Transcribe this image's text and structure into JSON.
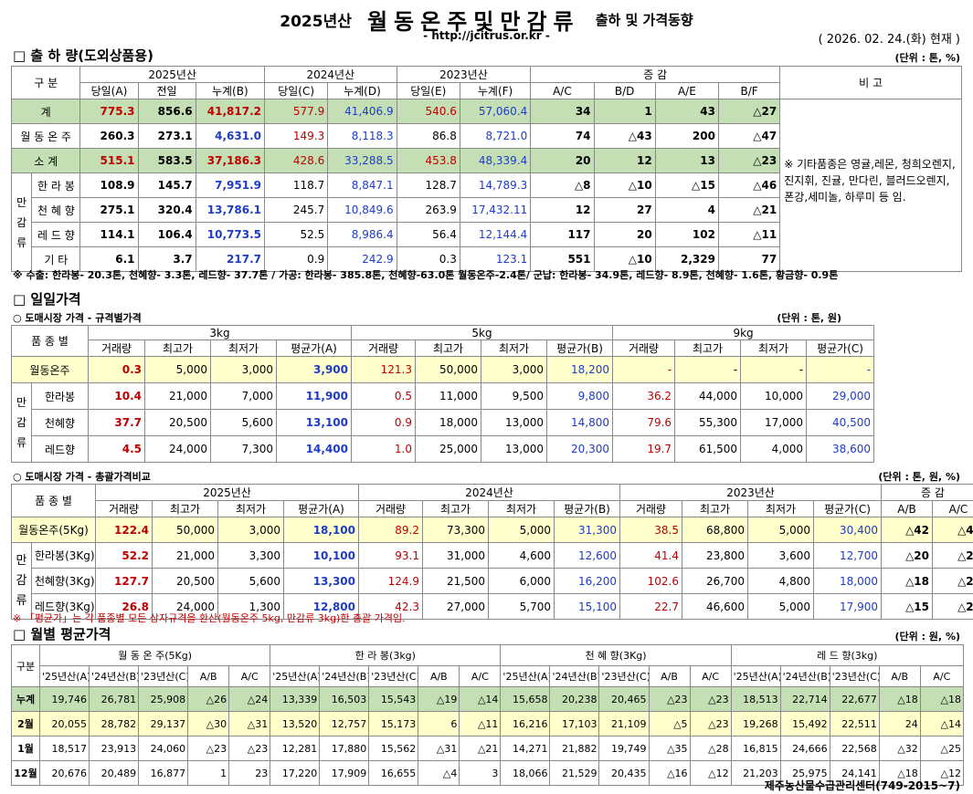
{
  "header": {
    "year": "2025년산",
    "product": "월동온주및만감류",
    "subtitle": "출하 및 가격동향",
    "url": "- http://jcitrus.or.kr -",
    "date": "( 2026. 02. 24.(화) 현재 )"
  },
  "shipment": {
    "title": "□ 출 하 량(도외상품용)",
    "unit": "(단위 : 톤, %)",
    "h": {
      "gubun": "구 분",
      "y2025": "2025년산",
      "y2024": "2024년산",
      "y2023": "2023년산",
      "change": "증 감",
      "remark": "비 고",
      "A": "당일(A)",
      "prev": "전일",
      "B": "누계(B)",
      "C": "당일(C)",
      "D": "누계(D)",
      "E": "당일(E)",
      "F": "누계(F)",
      "AC": "A/C",
      "BD": "B/D",
      "AE": "A/E",
      "BF": "B/F",
      "mangam": "만 감 류"
    },
    "rows": [
      {
        "name": "계",
        "v": [
          "775.3",
          "856.6",
          "41,817.2",
          "577.9",
          "41,406.9",
          "540.6",
          "57,060.4",
          "34",
          "1",
          "43",
          "△27"
        ]
      },
      {
        "name": "월 동 온 주",
        "v": [
          "260.3",
          "273.1",
          "4,631.0",
          "149.3",
          "8,118.3",
          "86.8",
          "8,721.0",
          "74",
          "△43",
          "200",
          "△47"
        ]
      },
      {
        "name": "소 계",
        "v": [
          "515.1",
          "583.5",
          "37,186.3",
          "428.6",
          "33,288.5",
          "453.8",
          "48,339.4",
          "20",
          "12",
          "13",
          "△23"
        ]
      },
      {
        "name": "한 라 봉",
        "v": [
          "108.9",
          "145.7",
          "7,951.9",
          "118.7",
          "8,847.1",
          "128.7",
          "14,789.3",
          "△8",
          "△10",
          "△15",
          "△46"
        ]
      },
      {
        "name": "천 혜 향",
        "v": [
          "275.1",
          "320.4",
          "13,786.1",
          "245.7",
          "10,849.6",
          "263.9",
          "17,432.11",
          "12",
          "27",
          "4",
          "△21"
        ]
      },
      {
        "name": "레 드 향",
        "v": [
          "114.1",
          "106.4",
          "10,773.5",
          "52.5",
          "8,986.4",
          "56.4",
          "12,144.4",
          "117",
          "20",
          "102",
          "△11"
        ]
      },
      {
        "name": "기 타",
        "v": [
          "6.1",
          "3.7",
          "217.7",
          "0.9",
          "242.9",
          "0.3",
          "123.1",
          "551",
          "△10",
          "2,329",
          "77"
        ]
      }
    ],
    "remark_text": "※ 기타품종은 영귤,레몬, 청희오렌지, 진지휘, 진귤, 만다린, 블러드오렌지, 폰강,세미놀, 하루미 등 임.",
    "note": "※ 수출: 한라봉- 20.3톤, 천혜향- 3.3톤, 레드향- 37.7톤 / 가공: 한라봉- 385.8톤, 천혜향-63.0톤 월동온주-2.4톤/  군납: 한라봉- 34.9톤, 레드향- 8.9톤, 천혜향- 1.6톤, 황금향- 0.9톤"
  },
  "daily": {
    "title": "□ 일일가격",
    "sub1": "○ 도매시장 가격 - 규격별가격",
    "unit1": "(단위 : 톤, 원)",
    "h1": {
      "variety": "품 종 별",
      "kg3": "3kg",
      "kg5": "5kg",
      "kg9": "9kg",
      "vol": "거래량",
      "max": "최고가",
      "min": "최저가",
      "avgA": "평균가(A)",
      "avgB": "평균가(B)",
      "avgC": "평균가(C)",
      "mangam": "만 감 류"
    },
    "rows1": [
      {
        "name": "월동온주",
        "v": [
          "0.3",
          "5,000",
          "3,000",
          "3,900",
          "121.3",
          "50,000",
          "3,000",
          "18,200",
          "-",
          "-",
          "-",
          "-"
        ]
      },
      {
        "name": "한라봉",
        "v": [
          "10.4",
          "21,000",
          "7,000",
          "11,900",
          "0.5",
          "11,000",
          "9,500",
          "9,800",
          "36.2",
          "44,000",
          "10,000",
          "29,000"
        ]
      },
      {
        "name": "천혜향",
        "v": [
          "37.7",
          "20,500",
          "5,600",
          "13,100",
          "0.9",
          "18,000",
          "13,000",
          "14,800",
          "79.6",
          "55,300",
          "17,000",
          "40,500"
        ]
      },
      {
        "name": "레드향",
        "v": [
          "4.5",
          "24,000",
          "7,300",
          "14,400",
          "1.0",
          "25,000",
          "13,000",
          "20,300",
          "19.7",
          "61,500",
          "4,000",
          "38,600"
        ]
      }
    ],
    "sub2": "○ 도매시장 가격 - 총괄가격비교",
    "unit2": "(단위 : 톤, 원, %)",
    "h2": {
      "variety": "품 종 별",
      "y2025": "2025년산",
      "y2024": "2024년산",
      "y2023": "2023년산",
      "change": "증 감",
      "vol": "거래량",
      "max": "최고가",
      "min": "최저가",
      "avgA": "평균가(A)",
      "avgB": "평균가(B)",
      "avgC": "평균가(C)",
      "AB": "A/B",
      "AC": "A/C",
      "mangam": "만 감 류"
    },
    "rows2": [
      {
        "name": "월동온주(5Kg)",
        "v": [
          "122.4",
          "50,000",
          "3,000",
          "18,100",
          "89.2",
          "73,300",
          "5,000",
          "31,300",
          "38.5",
          "68,800",
          "5,000",
          "30,400",
          "△42",
          "△40"
        ]
      },
      {
        "name": "한라봉(3Kg)",
        "v": [
          "52.2",
          "21,000",
          "3,300",
          "10,100",
          "93.1",
          "31,000",
          "4,600",
          "12,600",
          "41.4",
          "23,800",
          "3,600",
          "12,700",
          "△20",
          "△20"
        ]
      },
      {
        "name": "천혜향(3Kg)",
        "v": [
          "127.7",
          "20,500",
          "5,600",
          "13,300",
          "124.9",
          "21,500",
          "6,000",
          "16,200",
          "102.6",
          "26,700",
          "4,800",
          "18,000",
          "△18",
          "△26"
        ]
      },
      {
        "name": "레드향(3Kg)",
        "v": [
          "26.8",
          "24,000",
          "1,300",
          "12,800",
          "42.3",
          "27,000",
          "5,700",
          "15,100",
          "22.7",
          "46,600",
          "5,000",
          "17,900",
          "△15",
          "△28"
        ]
      }
    ],
    "note": "※ 「평균가」는 각 품종별 모든 상자규격을 환산(월동온주 5kg, 만감류 3kg)한 총괄 가격임."
  },
  "monthly": {
    "title": "□ 월별 평균가격",
    "unit": "(단위 : 원, %)",
    "h": {
      "gubun": "구분",
      "g1": "월 동 온 주(5Kg)",
      "g2": "한 라 봉(3kg)",
      "g3": "천 혜 향(3Kg)",
      "g4": "레 드 향(3kg)",
      "c25": "'25년산(A)",
      "c24": "'24년산(B)",
      "c23": "'23년산(C)",
      "AB": "A/B",
      "AC": "A/C"
    },
    "rows": [
      {
        "name": "누계",
        "v": [
          "19,746",
          "26,781",
          "25,908",
          "△26",
          "△24",
          "13,339",
          "16,503",
          "15,543",
          "△19",
          "△14",
          "15,658",
          "20,238",
          "20,465",
          "△23",
          "△23",
          "18,513",
          "22,714",
          "22,677",
          "△18",
          "△18"
        ]
      },
      {
        "name": "2월",
        "v": [
          "20,055",
          "28,782",
          "29,137",
          "△30",
          "△31",
          "13,520",
          "12,757",
          "15,173",
          "6",
          "△11",
          "16,216",
          "17,103",
          "21,109",
          "△5",
          "△23",
          "19,268",
          "15,492",
          "22,511",
          "24",
          "△14"
        ]
      },
      {
        "name": "1월",
        "v": [
          "18,517",
          "23,913",
          "24,060",
          "△23",
          "△23",
          "12,281",
          "17,880",
          "15,562",
          "△31",
          "△21",
          "14,271",
          "21,882",
          "19,749",
          "△35",
          "△28",
          "16,815",
          "24,666",
          "22,568",
          "△32",
          "△25"
        ]
      },
      {
        "name": "12월",
        "v": [
          "20,676",
          "20,489",
          "16,877",
          "1",
          "23",
          "17,220",
          "17,909",
          "16,655",
          "△4",
          "3",
          "18,066",
          "21,529",
          "20,435",
          "△16",
          "△12",
          "21,203",
          "25,975",
          "24,141",
          "△18",
          "△12"
        ]
      }
    ]
  },
  "footer": "제주농산물수급관리센터(749-2015~7)"
}
